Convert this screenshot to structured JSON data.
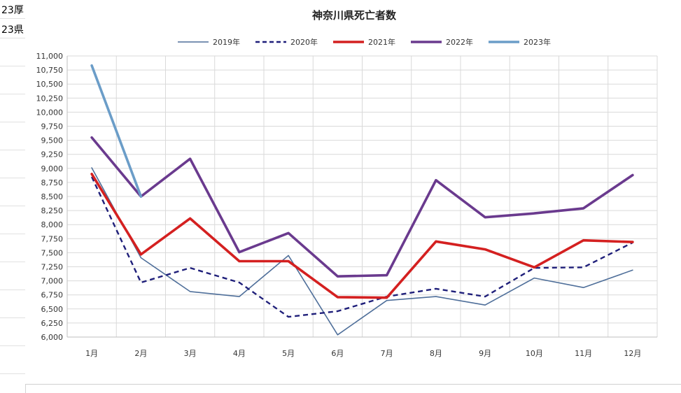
{
  "sheet": {
    "cells": [
      "23厚",
      "23県"
    ]
  },
  "chart_data": {
    "type": "line",
    "title": "神奈川県死亡者数",
    "categories": [
      "1月",
      "2月",
      "3月",
      "4月",
      "5月",
      "6月",
      "7月",
      "8月",
      "9月",
      "10月",
      "11月",
      "12月"
    ],
    "ylim": [
      6000,
      11000
    ],
    "ytick_step": 250,
    "yticks": [
      "6,000",
      "6,250",
      "6,500",
      "6,750",
      "7,000",
      "7,250",
      "7,500",
      "7,750",
      "8,000",
      "8,250",
      "8,500",
      "8,750",
      "9,000",
      "9,250",
      "9,500",
      "9,750",
      "10,000",
      "10,250",
      "10,500",
      "10,750",
      "11,000"
    ],
    "grid": true,
    "legend_position": "top",
    "series": [
      {
        "name": "2019年",
        "color": "#4f6f9a",
        "style": "solid",
        "weight": "thin",
        "values": [
          9010,
          7410,
          6810,
          6720,
          7450,
          6040,
          6650,
          6720,
          6570,
          7050,
          6880,
          7190
        ]
      },
      {
        "name": "2020年",
        "color": "#1f1f7a",
        "style": "dashed",
        "weight": "medium",
        "values": [
          8850,
          6970,
          7230,
          6970,
          6360,
          6460,
          6720,
          6860,
          6720,
          7230,
          7240,
          7680
        ]
      },
      {
        "name": "2021年",
        "color": "#d42020",
        "style": "solid",
        "weight": "thick",
        "values": [
          8900,
          7470,
          8110,
          7350,
          7350,
          6710,
          6700,
          7700,
          7560,
          7240,
          7720,
          7690
        ]
      },
      {
        "name": "2022年",
        "color": "#6a3a8e",
        "style": "solid",
        "weight": "thick",
        "values": [
          9550,
          8500,
          9170,
          7510,
          7850,
          7080,
          7100,
          8790,
          8130,
          8200,
          8290,
          8880
        ]
      },
      {
        "name": "2023年",
        "color": "#6b9dc8",
        "style": "solid",
        "weight": "thick",
        "values": [
          10830,
          8500,
          null,
          null,
          null,
          null,
          null,
          null,
          null,
          null,
          null,
          null
        ]
      }
    ]
  }
}
